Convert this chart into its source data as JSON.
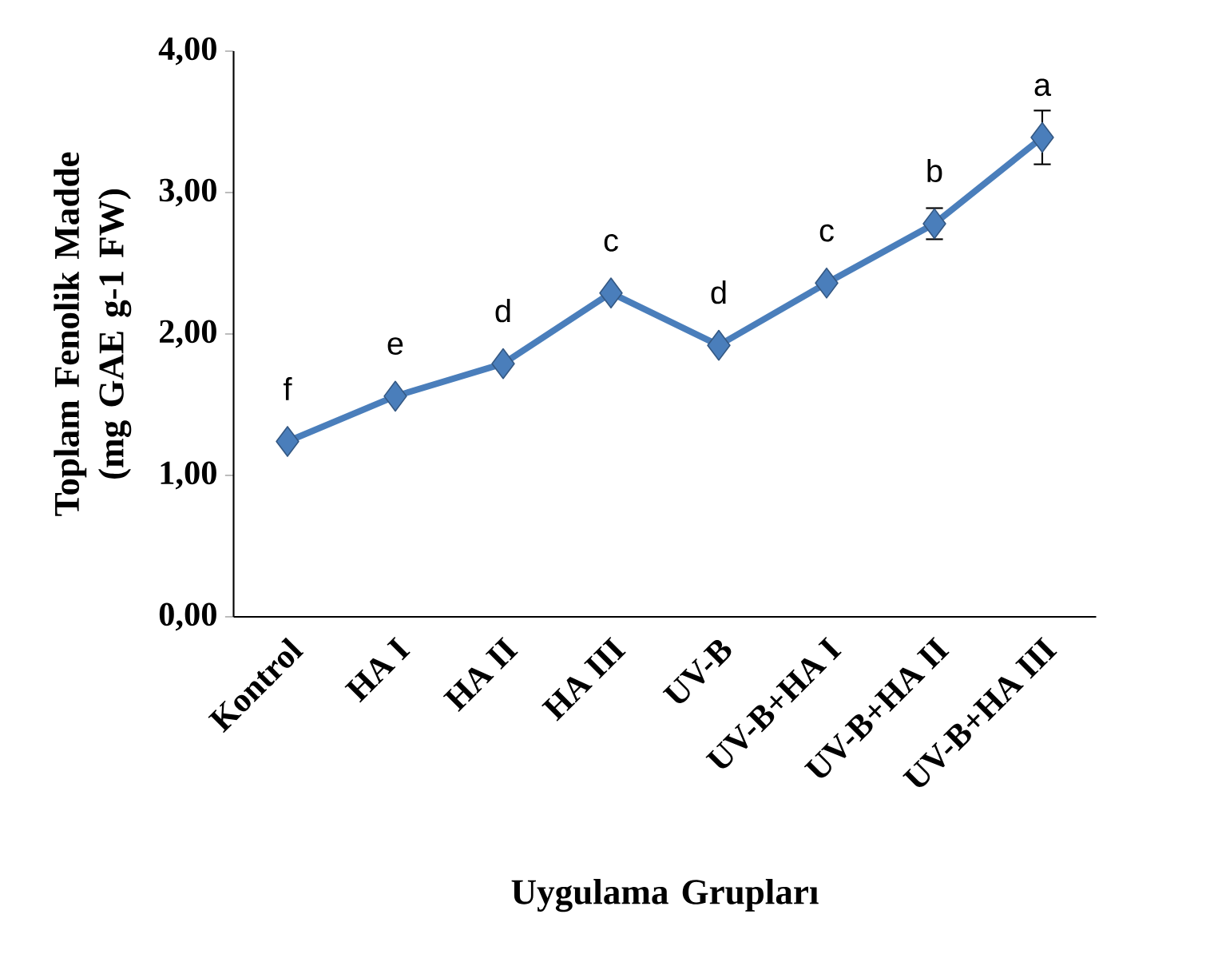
{
  "chart_data": {
    "type": "line",
    "xlabel": "Uygulama Grupları",
    "ylabel": "Toplam Fenolik Madde (mg GAE g-1 FW)",
    "categories": [
      "Kontrol",
      "HA I",
      "HA II",
      "HA III",
      "UV-B",
      "UV-B+HA I",
      "UV-B+HA II",
      "UV-B+HA III"
    ],
    "series": [
      {
        "color": "#4a7ebb",
        "values": [
          1.24,
          1.56,
          1.79,
          2.29,
          1.92,
          2.36,
          2.78,
          3.39
        ],
        "errors": [
          null,
          null,
          null,
          null,
          null,
          null,
          0.11,
          0.19
        ]
      }
    ],
    "ylim": [
      0,
      4
    ],
    "yticks": [
      {
        "value": 0,
        "label": "0,00"
      },
      {
        "value": 1,
        "label": "1,00"
      },
      {
        "value": 2,
        "label": "2,00"
      },
      {
        "value": 3,
        "label": "3,00"
      },
      {
        "value": 4,
        "label": "4,00"
      }
    ],
    "marker": "diamond",
    "line_style": "solid",
    "grid": false,
    "annotations": [
      {
        "text": "f",
        "x": "Kontrol",
        "y": 1.24
      },
      {
        "text": "e",
        "x": "HA I",
        "y": 1.56
      },
      {
        "text": "d",
        "x": "HA II",
        "y": 1.79
      },
      {
        "text": "c",
        "x": "HA III",
        "y": 2.29
      },
      {
        "text": "d",
        "x": "UV-B",
        "y": 1.92
      },
      {
        "text": "c",
        "x": "UV-B+HA I",
        "y": 2.36
      },
      {
        "text": "b",
        "x": "UV-B+HA II",
        "y": 2.78
      },
      {
        "text": "a",
        "x": "UV-B+HA III",
        "y": 3.39
      }
    ]
  }
}
